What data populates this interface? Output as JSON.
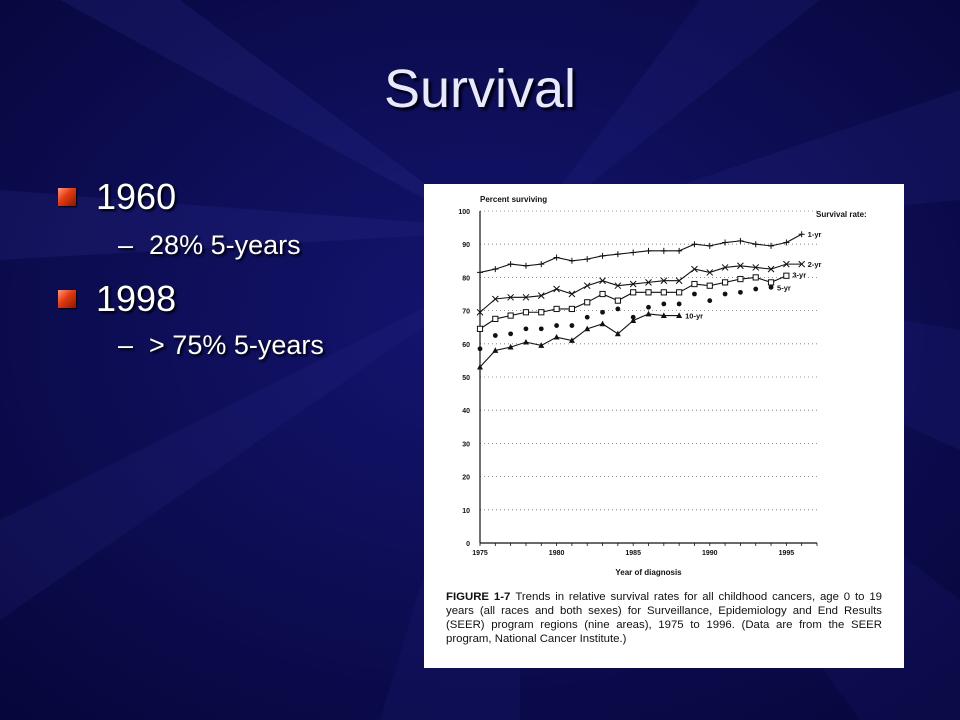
{
  "slide": {
    "title": "Survival",
    "bullets": [
      {
        "label": "1960",
        "sub": "28% 5-years"
      },
      {
        "label": "1998",
        "sub": "> 75% 5-years"
      }
    ]
  },
  "colors": {
    "background": "#0b0b4e",
    "bullet": "#e03a10",
    "text": "#ffffff"
  },
  "figure": {
    "caption_label": "FIGURE 1-7",
    "caption_text": "Trends in relative survival rates for all childhood cancers, age 0 to 19 years (all races and both sexes) for Surveillance, Epidemiology and End Results (SEER) program regions (nine areas), 1975 to 1996. (Data are from the SEER program, National Cancer Institute.)"
  },
  "chart_data": {
    "type": "line",
    "title": "",
    "ylabel": "Percent surviving",
    "xlabel": "Year of diagnosis",
    "legend_title": "Survival rate:",
    "legend_placement": "right, at line ends",
    "xlim": [
      1975,
      1997
    ],
    "ylim": [
      0,
      100
    ],
    "xticks": [
      1975,
      1980,
      1985,
      1990,
      1995
    ],
    "yticks": [
      0,
      10,
      20,
      30,
      40,
      50,
      60,
      70,
      80,
      90,
      100
    ],
    "grid": "horizontal dotted",
    "series": [
      {
        "name": "1-yr",
        "marker": "plus",
        "x": [
          1975,
          1976,
          1977,
          1978,
          1979,
          1980,
          1981,
          1982,
          1983,
          1984,
          1985,
          1986,
          1987,
          1988,
          1989,
          1990,
          1991,
          1992,
          1993,
          1994,
          1995,
          1996
        ],
        "values": [
          81.5,
          82.5,
          84,
          83.5,
          84,
          86,
          85,
          85.5,
          86.5,
          87,
          87.5,
          88,
          88,
          88,
          90,
          89.5,
          90.5,
          91,
          90,
          89.5,
          90.5,
          93
        ]
      },
      {
        "name": "2-yr",
        "marker": "x",
        "x": [
          1975,
          1976,
          1977,
          1978,
          1979,
          1980,
          1981,
          1982,
          1983,
          1984,
          1985,
          1986,
          1987,
          1988,
          1989,
          1990,
          1991,
          1992,
          1993,
          1994,
          1995,
          1996
        ],
        "values": [
          69.5,
          73.5,
          74,
          74,
          74.5,
          76.5,
          75,
          77.5,
          79,
          77.5,
          78,
          78.5,
          79,
          79,
          82.5,
          81.5,
          83,
          83.5,
          83,
          82.5,
          84,
          84
        ]
      },
      {
        "name": "3-yr",
        "marker": "square",
        "x": [
          1975,
          1976,
          1977,
          1978,
          1979,
          1980,
          1981,
          1982,
          1983,
          1984,
          1985,
          1986,
          1987,
          1988,
          1989,
          1990,
          1991,
          1992,
          1993,
          1994,
          1995
        ],
        "values": [
          64.5,
          67.5,
          68.5,
          69.5,
          69.5,
          70.5,
          70.5,
          72.5,
          75,
          73,
          75.5,
          75.5,
          75.5,
          75.5,
          78,
          77.5,
          78.5,
          79.5,
          80,
          78.5,
          80.5
        ]
      },
      {
        "name": "5-yr",
        "marker": "dot",
        "x": [
          1975,
          1976,
          1977,
          1978,
          1979,
          1980,
          1981,
          1982,
          1983,
          1984,
          1985,
          1986,
          1987,
          1988,
          1989,
          1990,
          1991,
          1992,
          1993,
          1994
        ],
        "values": [
          58.5,
          62.5,
          63,
          64.5,
          64.5,
          65.5,
          65.5,
          68,
          69.5,
          70.5,
          68,
          71,
          72,
          72,
          75,
          73,
          75,
          75.5,
          76.5,
          77
        ]
      },
      {
        "name": "10-yr",
        "marker": "triangle",
        "x": [
          1975,
          1976,
          1977,
          1978,
          1979,
          1980,
          1981,
          1982,
          1983,
          1984,
          1985,
          1986,
          1987,
          1988
        ],
        "values": [
          53,
          58,
          59,
          60.5,
          59.5,
          62,
          61,
          64.5,
          66,
          63,
          67,
          69,
          68.5,
          68.5
        ]
      }
    ]
  }
}
